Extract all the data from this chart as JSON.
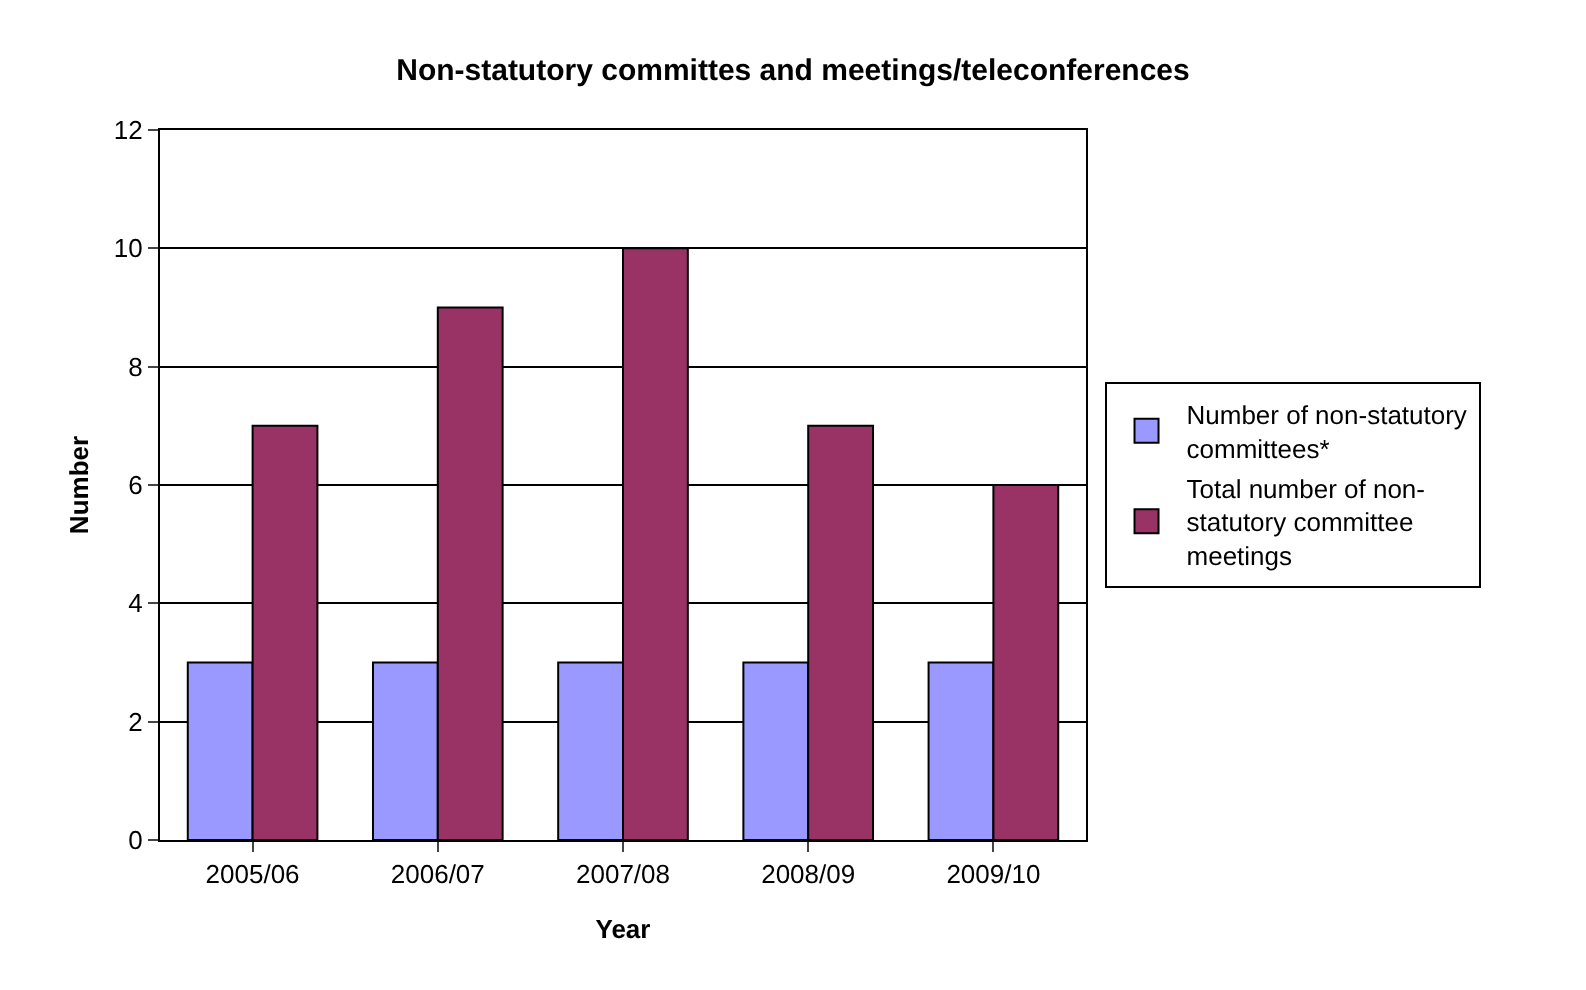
{
  "chart_data": {
    "type": "bar",
    "title": "Non-statutory committes and meetings/teleconferences",
    "xlabel": "Year",
    "ylabel": "Number",
    "categories": [
      "2005/06",
      "2006/07",
      "2007/08",
      "2008/09",
      "2009/10"
    ],
    "series": [
      {
        "name": "Number of non-statutory committees*",
        "color": "#9999ff",
        "values": [
          3,
          3,
          3,
          3,
          3
        ]
      },
      {
        "name": "Total number of non-statutory committee meetings",
        "color": "#993366",
        "values": [
          7,
          9,
          10,
          7,
          6
        ]
      }
    ],
    "ylim": [
      0,
      12
    ],
    "yticks": [
      0,
      2,
      4,
      6,
      8,
      10,
      12
    ],
    "grid": "y",
    "legend": "right"
  }
}
